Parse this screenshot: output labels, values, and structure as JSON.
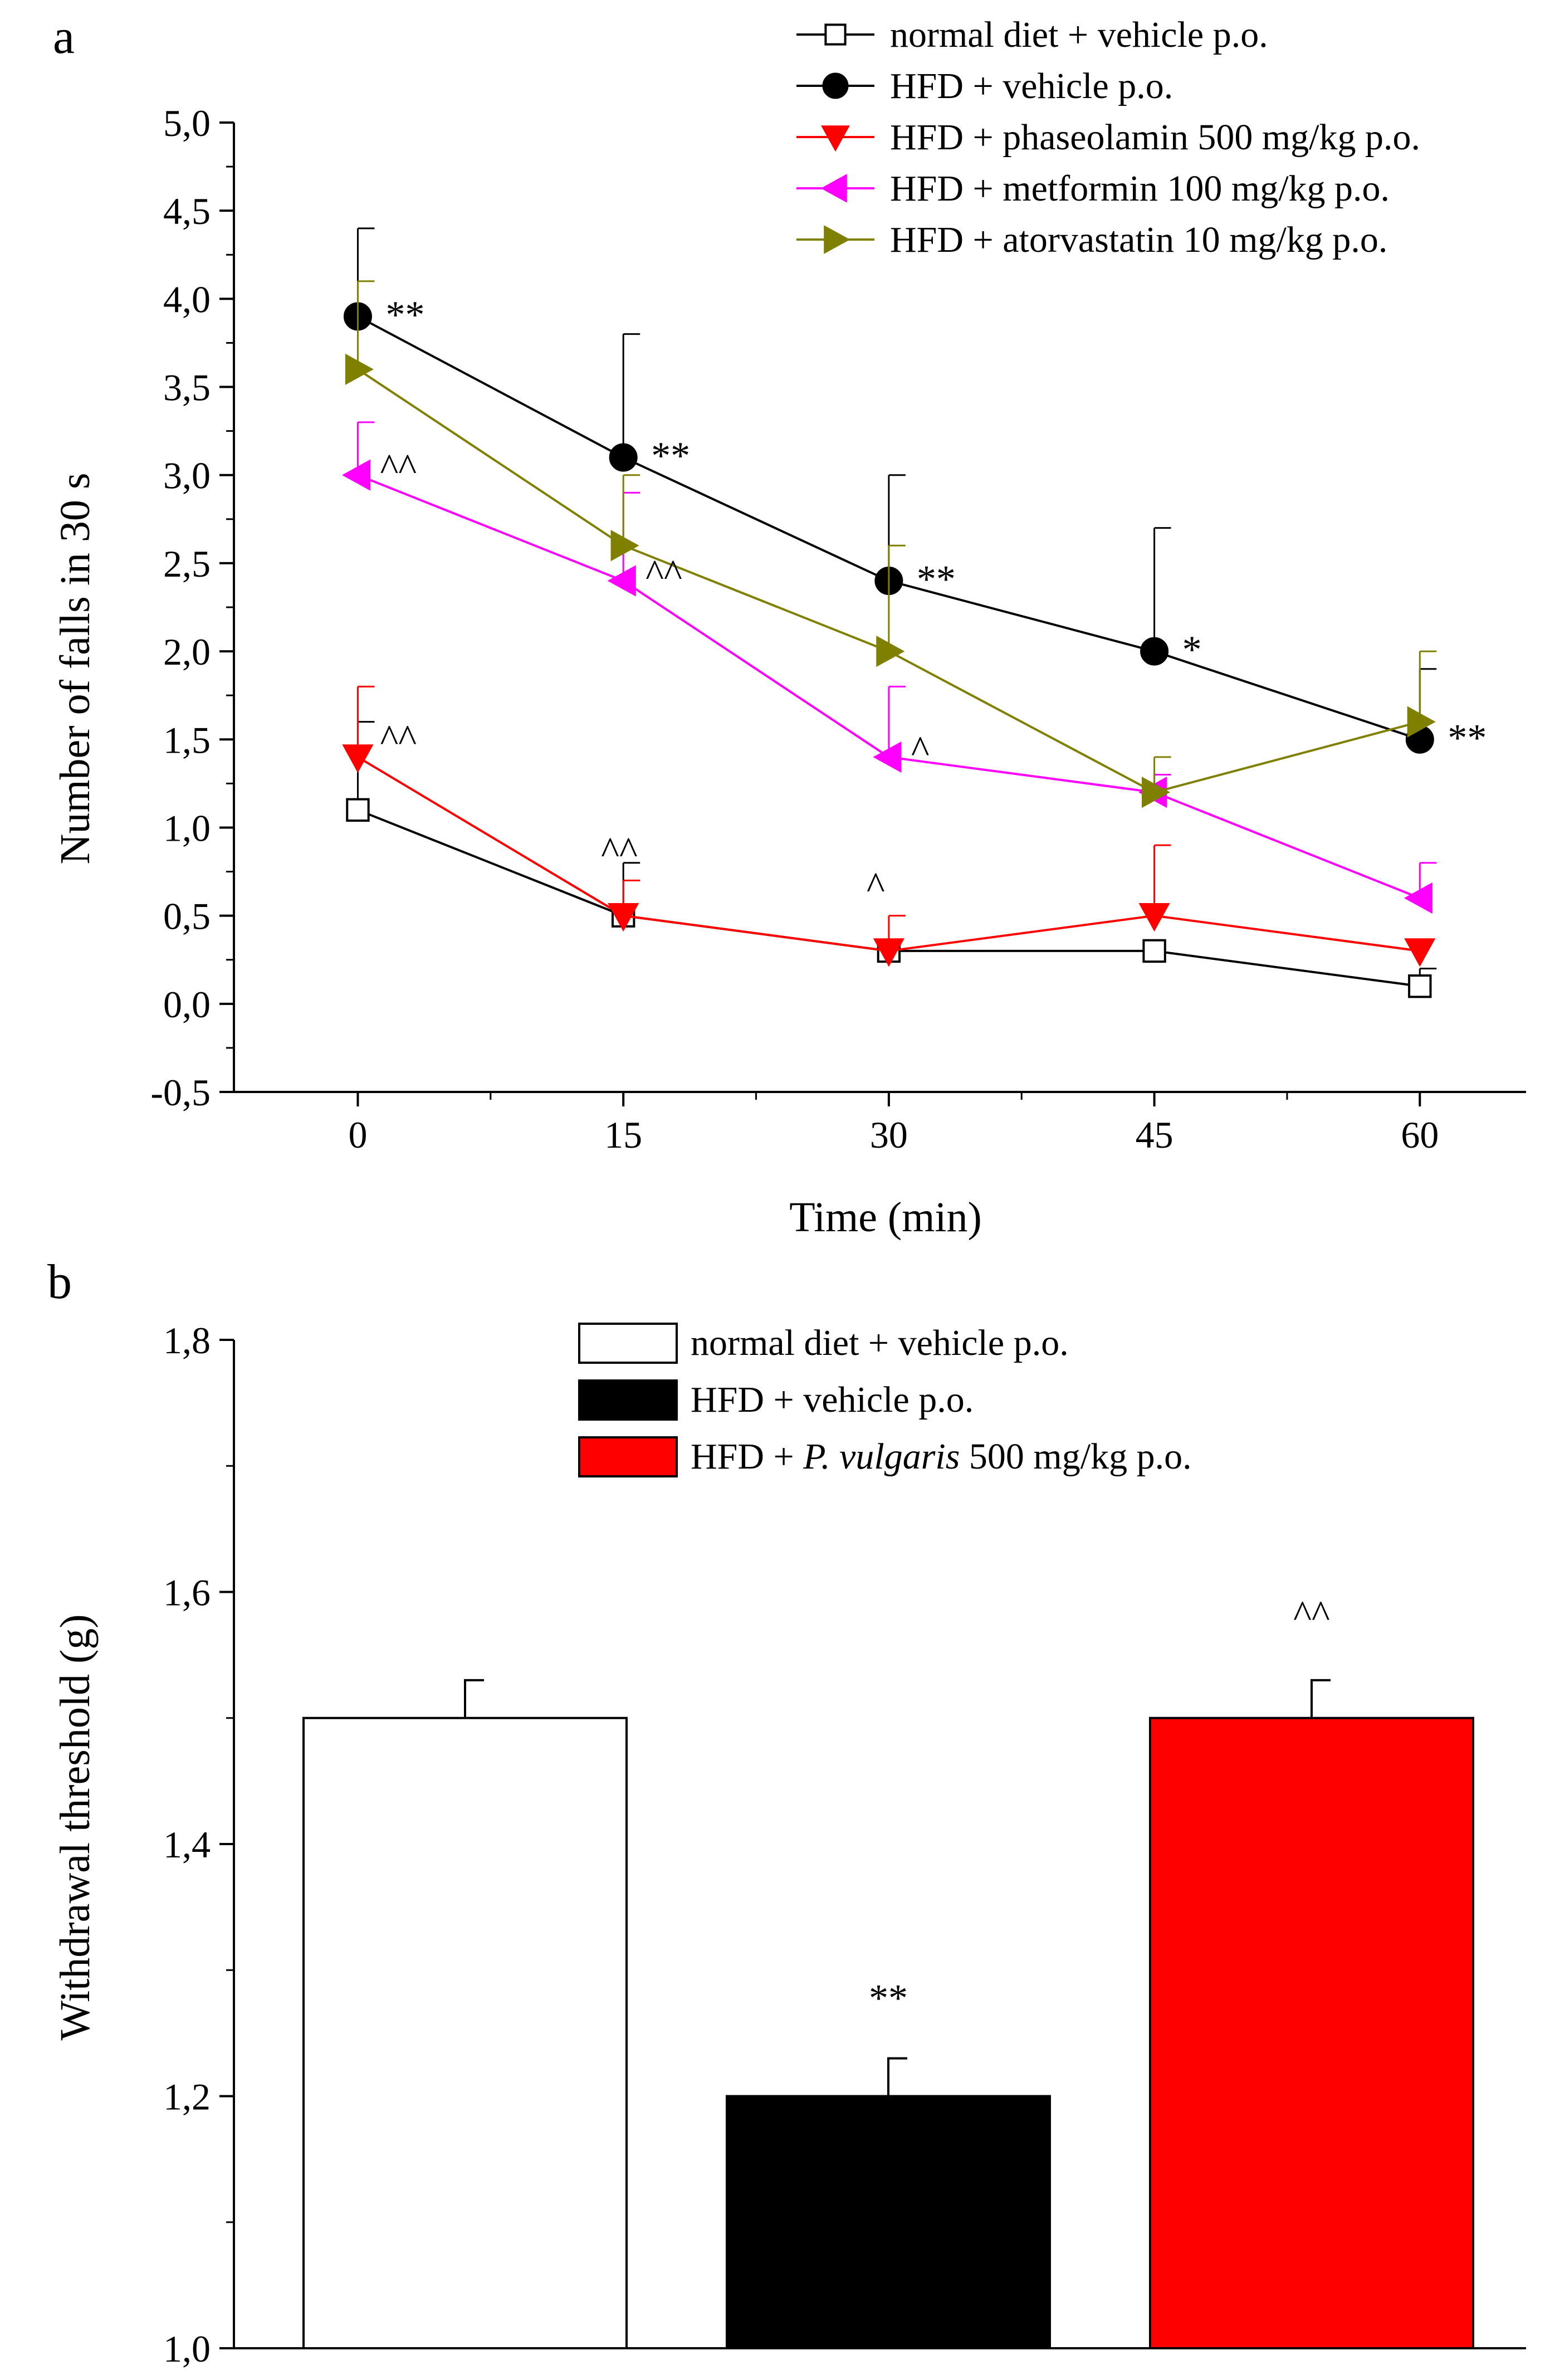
{
  "chart_data": [
    {
      "panel_label": "a",
      "type": "line",
      "xlabel": "Time (min)",
      "ylabel": "Number of falls in 30 s",
      "x": [
        0,
        15,
        30,
        45,
        60
      ],
      "xticks": [
        "0",
        "15",
        "30",
        "45",
        "60"
      ],
      "xlim": [
        -7,
        66
      ],
      "ylim": [
        -0.5,
        5.0
      ],
      "yticks": [
        "-0,5",
        "0,0",
        "0,5",
        "1,0",
        "1,5",
        "2,0",
        "2,5",
        "3,0",
        "3,5",
        "4,0",
        "4,5",
        "5,0"
      ],
      "legend_position": "top-right",
      "series": [
        {
          "name": "normal diet + vehicle p.o.",
          "marker": "open-square",
          "color": "#000000",
          "fill": "#ffffff",
          "values": [
            1.1,
            0.5,
            0.3,
            0.3,
            0.1
          ],
          "errors": [
            0.5,
            0.3,
            0.0,
            0.0,
            0.1
          ]
        },
        {
          "name": "HFD + vehicle p.o.",
          "marker": "circle",
          "color": "#000000",
          "fill": "#000000",
          "values": [
            3.9,
            3.1,
            2.4,
            2.0,
            1.5
          ],
          "errors": [
            0.5,
            0.7,
            0.6,
            0.7,
            0.4
          ]
        },
        {
          "name": "HFD + phaseolamin 500 mg/kg p.o.",
          "marker": "triangle-down",
          "color": "#ff0000",
          "fill": "#ff0000",
          "values": [
            1.4,
            0.5,
            0.3,
            0.5,
            0.3
          ],
          "errors": [
            0.4,
            0.2,
            0.2,
            0.4,
            0.0
          ]
        },
        {
          "name": "HFD + metformin 100 mg/kg p.o.",
          "marker": "triangle-left",
          "color": "#ff00ff",
          "fill": "#ff00ff",
          "values": [
            3.0,
            2.4,
            1.4,
            1.2,
            0.6
          ],
          "errors": [
            0.3,
            0.5,
            0.4,
            0.1,
            0.2
          ]
        },
        {
          "name": "HFD + atorvastatin 10 mg/kg p.o.",
          "marker": "triangle-right",
          "color": "#808000",
          "fill": "#808000",
          "values": [
            3.6,
            2.6,
            2.0,
            1.2,
            1.6
          ],
          "errors": [
            0.5,
            0.4,
            0.6,
            0.2,
            0.4
          ]
        }
      ],
      "annotations": [
        {
          "text": "**",
          "series": 1,
          "point": 0
        },
        {
          "text": "**",
          "series": 1,
          "point": 1
        },
        {
          "text": "**",
          "series": 1,
          "point": 2
        },
        {
          "text": "*",
          "series": 1,
          "point": 3
        },
        {
          "text": "**",
          "series": 1,
          "point": 4
        },
        {
          "text": "^^",
          "series": 3,
          "point": 0
        },
        {
          "text": "^^",
          "series": 3,
          "point": 1
        },
        {
          "text": "^",
          "series": 3,
          "point": 2
        },
        {
          "text": "^^",
          "series": 2,
          "point": 0
        },
        {
          "text": "^^",
          "series": 2,
          "point": 1
        },
        {
          "text": "^",
          "series": 2,
          "point": 2
        }
      ]
    },
    {
      "panel_label": "b",
      "type": "bar",
      "ylabel": "Withdrawal threshold (g)",
      "categories": [
        "normal diet + vehicle p.o.",
        "HFD + vehicle p.o.",
        "HFD + P. vulgaris 500 mg/kg p.o."
      ],
      "legend": [
        {
          "prefix": "normal diet + vehicle p.o.",
          "italic": "",
          "suffix": ""
        },
        {
          "prefix": "HFD + vehicle p.o.",
          "italic": "",
          "suffix": ""
        },
        {
          "prefix": "HFD + ",
          "italic": "P. vulgaris",
          "suffix": " 500 mg/kg p.o."
        }
      ],
      "values": [
        1.5,
        1.2,
        1.5
      ],
      "errors": [
        0.03,
        0.03,
        0.03
      ],
      "colors": [
        "#ffffff",
        "#000000",
        "#ff0000"
      ],
      "annotations": [
        "",
        "**",
        "^^"
      ],
      "ylim": [
        1.0,
        1.8
      ],
      "yticks": [
        "1,0",
        "1,2",
        "1,4",
        "1,6",
        "1,8"
      ],
      "legend_position": "top-center"
    }
  ]
}
